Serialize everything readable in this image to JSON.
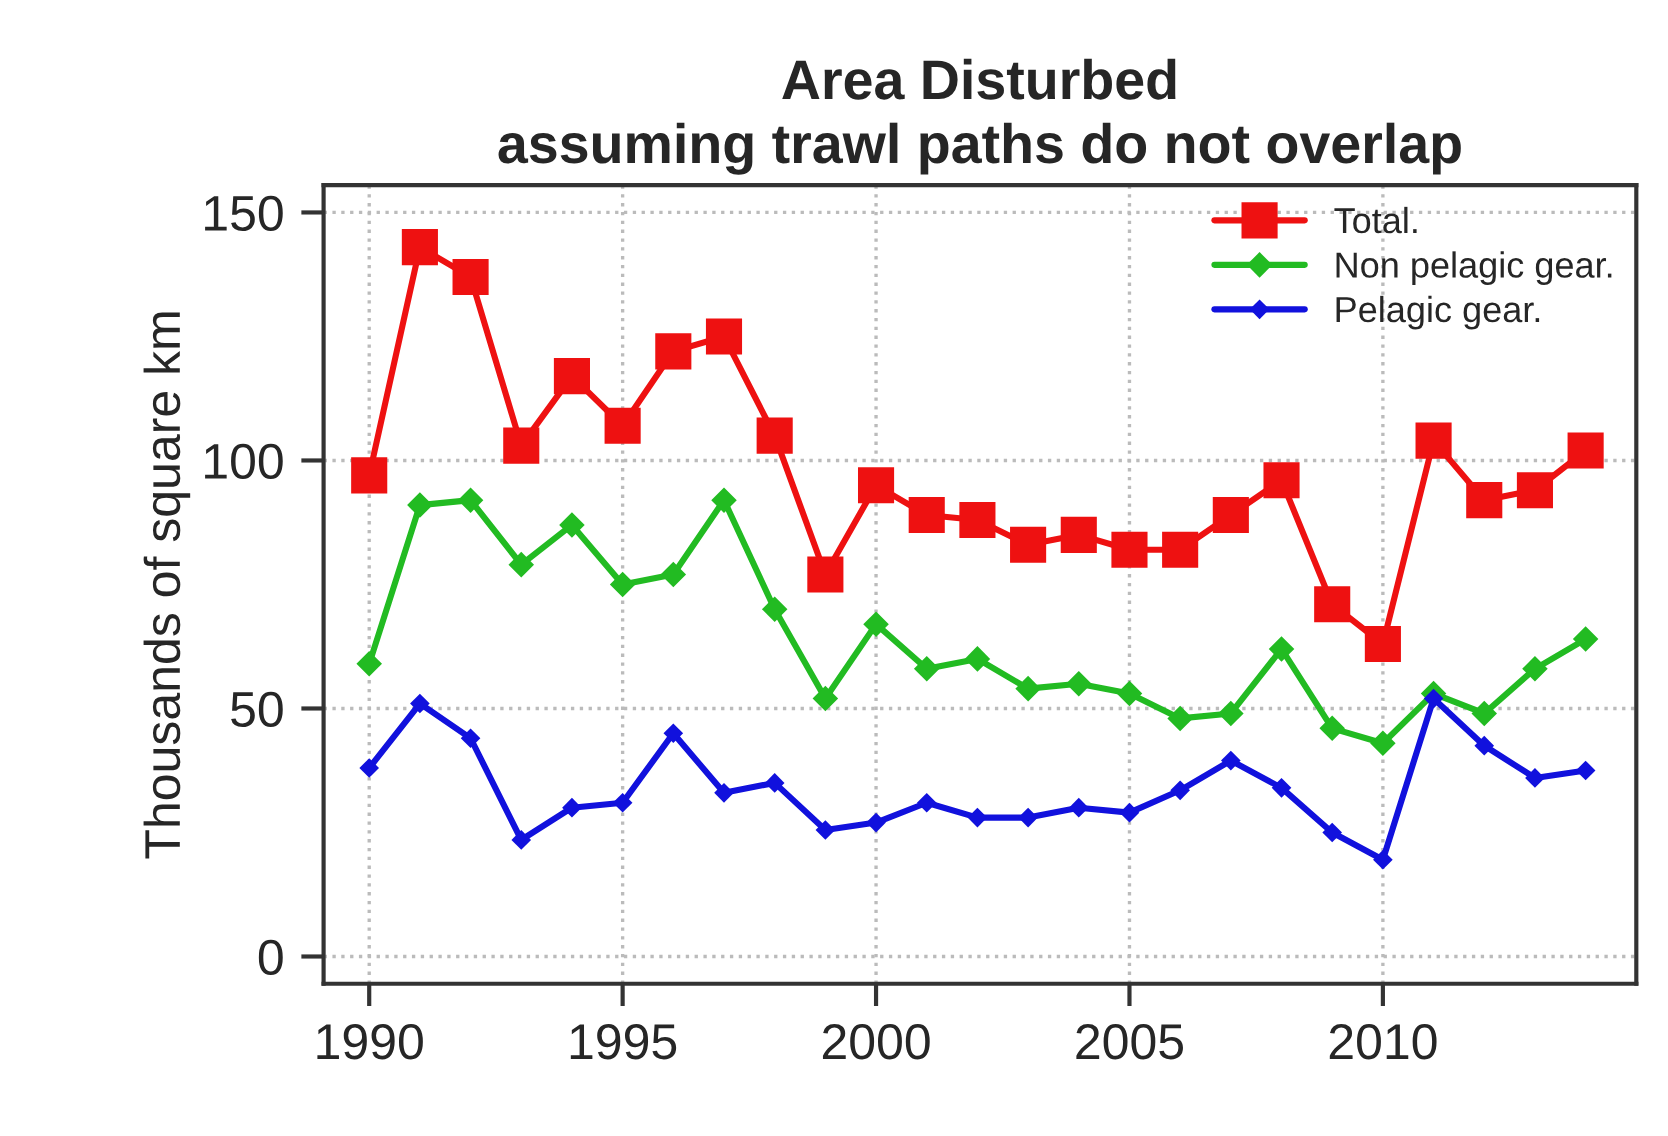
{
  "chart_data": {
    "type": "line",
    "title": "Area Disturbed\nassuming trawl paths do not overlap",
    "ylabel": "Thousands of square km",
    "x": [
      1990,
      1991,
      1992,
      1993,
      1994,
      1995,
      1996,
      1997,
      1998,
      1999,
      2000,
      2001,
      2002,
      2003,
      2004,
      2005,
      2006,
      2007,
      2008,
      2009,
      2010,
      2011,
      2012,
      2013,
      2014
    ],
    "series": [
      {
        "name": "Total.",
        "color": "#ee1111",
        "marker": "square",
        "values": [
          97,
          143,
          137,
          103,
          117,
          107,
          122,
          125,
          105,
          77,
          95,
          89,
          88,
          83,
          85,
          82,
          82,
          89,
          96,
          71,
          63,
          104,
          92,
          94,
          102
        ]
      },
      {
        "name": "Non pelagic gear.",
        "color": "#22bb22",
        "marker": "diamond",
        "values": [
          59,
          91,
          92,
          79,
          87,
          75,
          77,
          92,
          70,
          52,
          67,
          58,
          60,
          54,
          55,
          53,
          48,
          49,
          62,
          46,
          43,
          53,
          49,
          58,
          64
        ]
      },
      {
        "name": "Pelagic gear.",
        "color": "#1111dd",
        "marker": "diamond",
        "values": [
          38,
          51,
          44,
          23.5,
          30,
          31,
          45,
          33,
          35,
          25.5,
          27,
          31,
          28,
          28,
          30,
          29,
          33.5,
          39.5,
          34,
          25,
          19.5,
          52,
          42.5,
          36,
          37.5
        ]
      }
    ],
    "xlim": [
      1989.1,
      2015.0
    ],
    "ylim": [
      -5.5,
      155.5
    ],
    "xticks": [
      1990,
      1995,
      2000,
      2005,
      2010
    ],
    "yticks": [
      0,
      50,
      100,
      150
    ],
    "grid": true,
    "legend": "top right",
    "line_style": "solid"
  }
}
